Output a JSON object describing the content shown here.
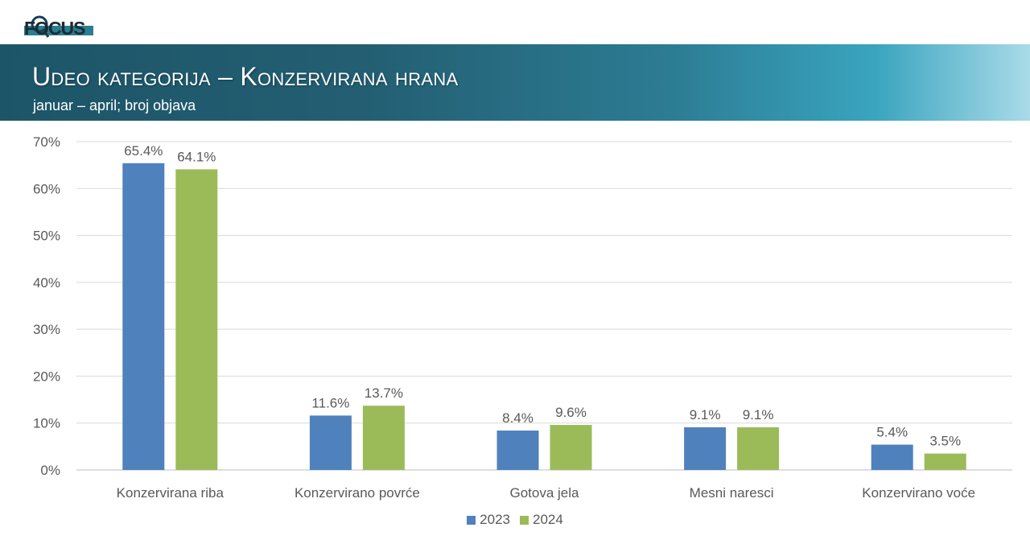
{
  "header": {
    "logo_text": "FOCUS",
    "title": "Udeo kategorija – Konzervirana hrana",
    "subtitle": "januar – april; broj objava"
  },
  "chart_data": {
    "type": "bar",
    "title": "Udeo kategorija – Konzervirana hrana",
    "subtitle": "januar – april; broj objava",
    "categories": [
      "Konzervirana riba",
      "Konzervirano povrće",
      "Gotova jela",
      "Mesni naresci",
      "Konzervirano voće"
    ],
    "series": [
      {
        "name": "2023",
        "color": "#4f81bd",
        "values": [
          65.4,
          11.6,
          8.4,
          9.1,
          5.4
        ],
        "labels": [
          "65.4%",
          "11.6%",
          "8.4%",
          "9.1%",
          "5.4%"
        ]
      },
      {
        "name": "2024",
        "color": "#9bbb59",
        "values": [
          64.1,
          13.7,
          9.6,
          9.1,
          3.5
        ],
        "labels": [
          "64.1%",
          "13.7%",
          "9.6%",
          "9.1%",
          "3.5%"
        ]
      }
    ],
    "ylim": [
      0,
      70
    ],
    "yticks": [
      "0%",
      "10%",
      "20%",
      "30%",
      "40%",
      "50%",
      "60%",
      "70%"
    ],
    "xlabel": "",
    "ylabel": "",
    "grid": true,
    "legend": "bottom"
  }
}
